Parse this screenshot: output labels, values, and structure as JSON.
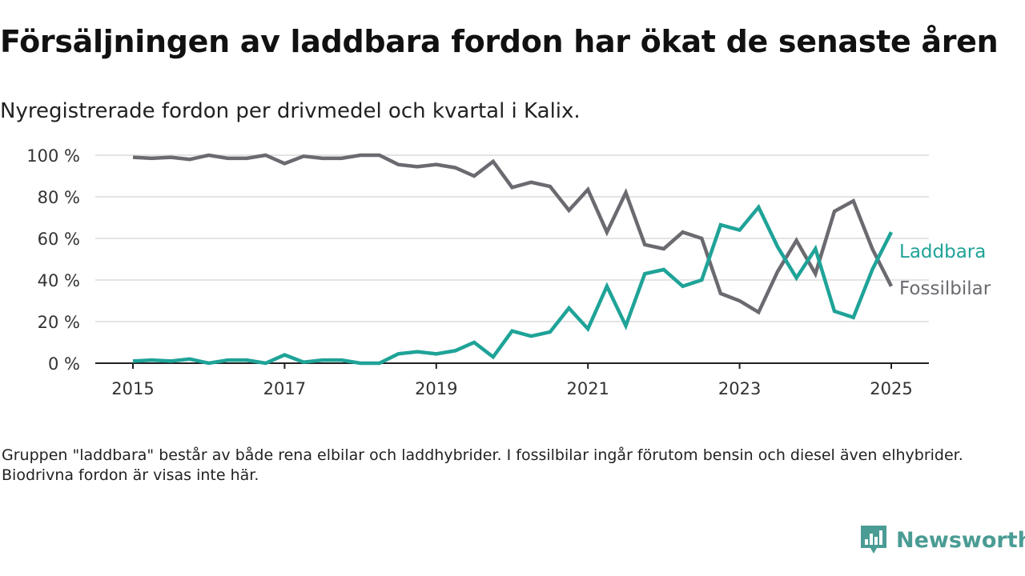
{
  "header": {
    "title": "Försäljningen av laddbara fordon har ökat de senaste åren",
    "subtitle": "Nyregistrerade fordon per drivmedel och kvartal i Kalix."
  },
  "footer": {
    "note": "Gruppen \"laddbara\" består av både rena elbilar och laddhybrider. I fossilbilar ingår förutom bensin och diesel även elhybrider. Biodrivna fordon är visas inte här.",
    "brand": "Newsworthy",
    "brand_icon": "newsworthy-logo-icon"
  },
  "chart_data": {
    "type": "line",
    "x_unit": "year (quarterly data)",
    "xlim": [
      2014.6,
      2025.5
    ],
    "ylim": [
      0,
      100
    ],
    "grid": true,
    "legend": "direct labels at line ends (right)",
    "xticks": [
      2015,
      2017,
      2019,
      2021,
      2023,
      2025
    ],
    "xtick_labels": [
      "2015",
      "2017",
      "2019",
      "2021",
      "2023",
      "2025"
    ],
    "yticks": [
      0,
      20,
      40,
      60,
      80,
      100
    ],
    "ytick_labels": [
      "0 %",
      "20 %",
      "40 %",
      "60 %",
      "80 %",
      "100 %"
    ],
    "x": [
      2015,
      2015.25,
      2015.5,
      2015.75,
      2016,
      2016.25,
      2016.5,
      2016.75,
      2017,
      2017.25,
      2017.5,
      2017.75,
      2018,
      2018.25,
      2018.5,
      2018.75,
      2019,
      2019.25,
      2019.5,
      2019.75,
      2020,
      2020.25,
      2020.5,
      2020.75,
      2021,
      2021.25,
      2021.5,
      2021.75,
      2022,
      2022.25,
      2022.5,
      2022.75,
      2023,
      2023.25,
      2023.5,
      2023.75,
      2024,
      2024.25,
      2024.5,
      2024.75,
      2025
    ],
    "series": [
      {
        "name": "Laddbara",
        "color": "#1fa398",
        "values": [
          1,
          1.5,
          1,
          2,
          0,
          1.5,
          1.5,
          0,
          4,
          0.5,
          1.5,
          1.5,
          0,
          0,
          4.5,
          5.5,
          4.5,
          6,
          10,
          3,
          15.5,
          13,
          15,
          26.5,
          16.5,
          37,
          18,
          43,
          45,
          37,
          40,
          66.5,
          64,
          75,
          56,
          41,
          55,
          25,
          22,
          45,
          63
        ]
      },
      {
        "name": "Fossilbilar",
        "color": "#6b6a70",
        "values": [
          99,
          98.5,
          99,
          98,
          100,
          98.5,
          98.5,
          100,
          96,
          99.5,
          98.5,
          98.5,
          100,
          100,
          95.5,
          94.5,
          95.5,
          94,
          90,
          97,
          84.5,
          87,
          85,
          73.5,
          83.5,
          63,
          82,
          57,
          55,
          63,
          60,
          33.5,
          30,
          24.5,
          44,
          59,
          43,
          73,
          78,
          55,
          37
        ]
      }
    ]
  }
}
